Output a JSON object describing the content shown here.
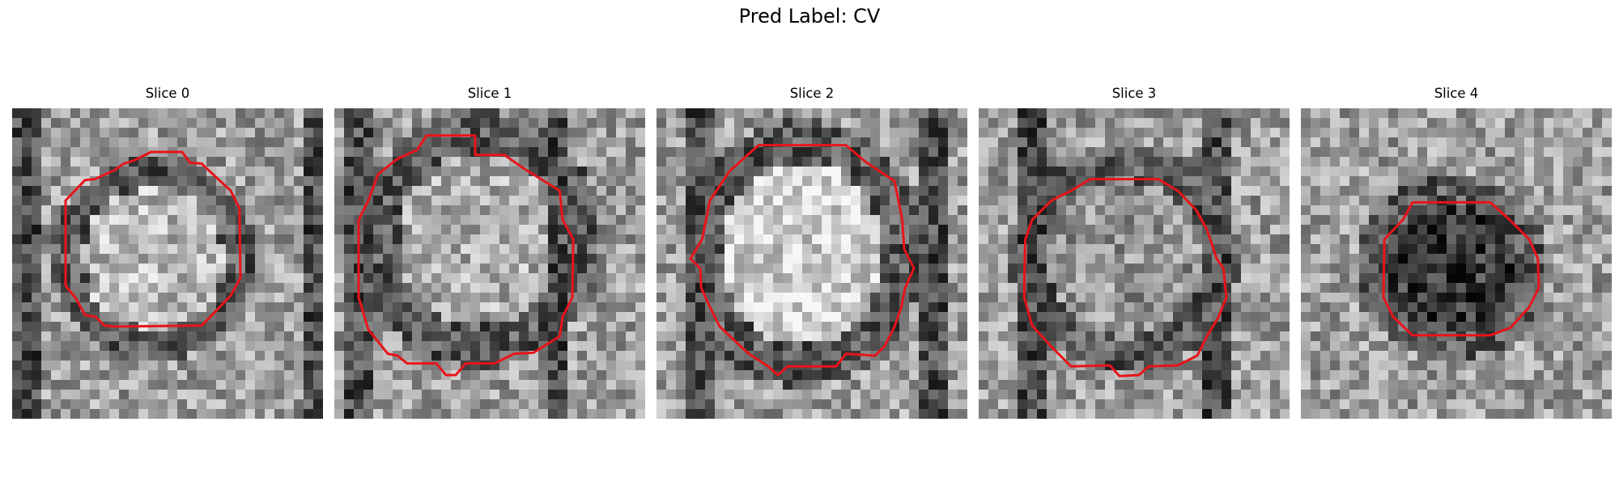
{
  "figure": {
    "title": "Pred Label: CV"
  },
  "colors": {
    "contour": "#e8141a",
    "background": "#ffffff"
  },
  "slices": [
    {
      "title": "Slice 0",
      "seed": 11,
      "inner": {
        "cx": 14.5,
        "cy": 15.5,
        "rx": 8.5,
        "ry": 8.5,
        "level": 0.72
      },
      "dark_bands": [
        [
          0,
          2,
          0.25
        ],
        [
          30,
          33,
          0.9
        ]
      ],
      "contour": [
        [
          14.3,
          4.5
        ],
        [
          17.5,
          4.5
        ],
        [
          18.3,
          5.6
        ],
        [
          19.5,
          5.7
        ],
        [
          22.5,
          8.5
        ],
        [
          23.4,
          10.3
        ],
        [
          23.5,
          17.5
        ],
        [
          22.5,
          19.3
        ],
        [
          20.5,
          21.4
        ],
        [
          19.5,
          22.4
        ],
        [
          10.5,
          22.5
        ],
        [
          9.5,
          22.4
        ],
        [
          8.6,
          21.5
        ],
        [
          7.5,
          21.3
        ],
        [
          6.5,
          19.5
        ],
        [
          5.5,
          18.3
        ],
        [
          5.5,
          9.5
        ],
        [
          7.5,
          7.4
        ],
        [
          8.5,
          7.3
        ],
        [
          10.5,
          6.4
        ],
        [
          11.5,
          5.7
        ],
        [
          12.5,
          5.4
        ]
      ]
    },
    {
      "title": "Slice 1",
      "seed": 23,
      "inner": {
        "cx": 15,
        "cy": 13.5,
        "rx": 10,
        "ry": 10.5,
        "level": 0.68
      },
      "dark_bands": [
        [
          1,
          3,
          0.3
        ],
        [
          22,
          23.5,
          0.35
        ]
      ],
      "contour": [
        [
          9.5,
          2.8
        ],
        [
          14.5,
          2.8
        ],
        [
          14.5,
          4.8
        ],
        [
          17.5,
          4.8
        ],
        [
          19.5,
          6.2
        ],
        [
          23.2,
          8.5
        ],
        [
          23.5,
          11.5
        ],
        [
          24.6,
          13.5
        ],
        [
          24.5,
          19.5
        ],
        [
          23.5,
          21.5
        ],
        [
          23.2,
          23.5
        ],
        [
          20.5,
          25.2
        ],
        [
          18.5,
          25.3
        ],
        [
          16.5,
          26.3
        ],
        [
          13.5,
          26.3
        ],
        [
          12.5,
          27.5
        ],
        [
          11.5,
          27.5
        ],
        [
          10.5,
          26.3
        ],
        [
          7.5,
          26.3
        ],
        [
          6.5,
          25.5
        ],
        [
          5.5,
          25.3
        ],
        [
          3.5,
          22.8
        ],
        [
          2.5,
          19.5
        ],
        [
          2.5,
          11.5
        ],
        [
          3.5,
          9.5
        ],
        [
          4.5,
          6.8
        ],
        [
          6.5,
          5.2
        ],
        [
          8.5,
          4.3
        ]
      ]
    },
    {
      "title": "Slice 2",
      "seed": 37,
      "inner": {
        "cx": 15,
        "cy": 15,
        "rx": 10,
        "ry": 11,
        "level": 0.82
      },
      "dark_bands": [
        [
          3,
          5,
          0.3
        ],
        [
          27,
          29,
          0.55
        ]
      ],
      "contour": [
        [
          10.5,
          3.8
        ],
        [
          19.5,
          3.8
        ],
        [
          21.5,
          5.5
        ],
        [
          24.5,
          7.5
        ],
        [
          25.3,
          11.5
        ],
        [
          25.5,
          14.5
        ],
        [
          26.5,
          16.5
        ],
        [
          25.6,
          18.5
        ],
        [
          25.2,
          20.5
        ],
        [
          24.5,
          22.5
        ],
        [
          23.5,
          24.5
        ],
        [
          22.5,
          25.5
        ],
        [
          19.5,
          25.3
        ],
        [
          18.5,
          26.6
        ],
        [
          13.5,
          26.6
        ],
        [
          12.5,
          27.5
        ],
        [
          11.5,
          26.6
        ],
        [
          9.5,
          25.3
        ],
        [
          6.5,
          22.5
        ],
        [
          5.5,
          20.5
        ],
        [
          4.6,
          18.5
        ],
        [
          4.5,
          16.5
        ],
        [
          3.5,
          15.5
        ],
        [
          4.7,
          13.5
        ],
        [
          5.5,
          9.5
        ],
        [
          7.5,
          6.5
        ]
      ]
    },
    {
      "title": "Slice 3",
      "seed": 49,
      "inner": {
        "cx": 15,
        "cy": 15.5,
        "rx": 9.5,
        "ry": 9.5,
        "level": 0.58
      },
      "dark_bands": [
        [
          4,
          6,
          0.1
        ],
        [
          23,
          25,
          0.15
        ]
      ],
      "contour": [
        [
          11.5,
          7.3
        ],
        [
          18.5,
          7.3
        ],
        [
          20.5,
          8.5
        ],
        [
          22.4,
          10.5
        ],
        [
          23.5,
          12.5
        ],
        [
          24.5,
          15.5
        ],
        [
          25.2,
          16.5
        ],
        [
          25.5,
          19.5
        ],
        [
          24.7,
          21.5
        ],
        [
          23.5,
          23.5
        ],
        [
          22.5,
          25.5
        ],
        [
          20.5,
          26.5
        ],
        [
          17.5,
          26.6
        ],
        [
          16.5,
          27.5
        ],
        [
          14.5,
          27.6
        ],
        [
          13.5,
          26.5
        ],
        [
          9.5,
          26.6
        ],
        [
          7.5,
          24.6
        ],
        [
          6.5,
          23.5
        ],
        [
          5.5,
          22.4
        ],
        [
          4.7,
          19.5
        ],
        [
          4.7,
          17.5
        ],
        [
          4.8,
          13.5
        ],
        [
          5.5,
          11.5
        ],
        [
          7.5,
          9.5
        ],
        [
          9.5,
          8.5
        ]
      ]
    },
    {
      "title": "Slice 4",
      "seed": 61,
      "inner": {
        "cx": 15.5,
        "cy": 16.5,
        "rx": 8.0,
        "ry": 7.5,
        "level": 0.22
      },
      "dark_bands": [],
      "contour": [
        [
          11.5,
          9.7
        ],
        [
          19.5,
          9.7
        ],
        [
          21.5,
          11.5
        ],
        [
          23.5,
          13.5
        ],
        [
          24.4,
          15.5
        ],
        [
          24.5,
          18.5
        ],
        [
          23.5,
          20.5
        ],
        [
          21.6,
          22.6
        ],
        [
          19.5,
          23.4
        ],
        [
          11.5,
          23.4
        ],
        [
          9.5,
          21.5
        ],
        [
          8.5,
          19.5
        ],
        [
          8.6,
          13.5
        ],
        [
          10.5,
          11.5
        ]
      ]
    }
  ]
}
